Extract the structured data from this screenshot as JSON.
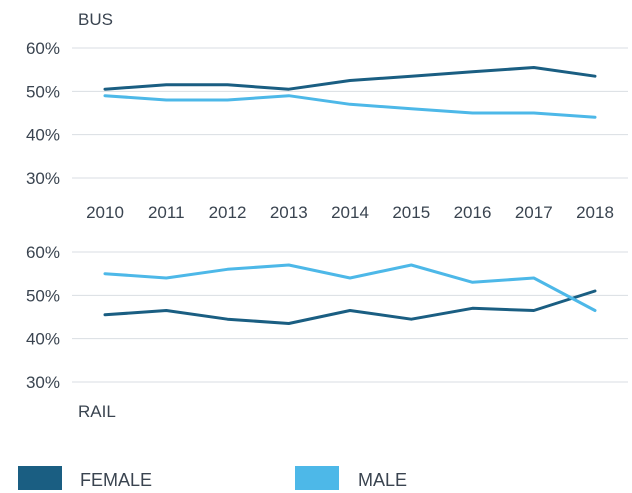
{
  "chart_data": [
    {
      "type": "line",
      "title": "BUS",
      "x": [
        "2010",
        "2011",
        "2012",
        "2013",
        "2014",
        "2015",
        "2016",
        "2017",
        "2018"
      ],
      "yticks": [
        "60%",
        "50%",
        "40%",
        "30%"
      ],
      "ylim": [
        30,
        60
      ],
      "grid": true,
      "series": [
        {
          "name": "FEMALE",
          "color": "#1a5e82",
          "values": [
            50.5,
            51.5,
            51.5,
            50.5,
            52.5,
            53.5,
            54.5,
            55.5,
            53.5
          ]
        },
        {
          "name": "MALE",
          "color": "#4db8e8",
          "values": [
            49,
            48,
            48,
            49,
            47,
            46,
            45,
            45,
            44
          ]
        }
      ]
    },
    {
      "type": "line",
      "title": "RAIL",
      "x": [
        "2010",
        "2011",
        "2012",
        "2013",
        "2014",
        "2015",
        "2016",
        "2017",
        "2018"
      ],
      "yticks": [
        "60%",
        "50%",
        "40%",
        "30%"
      ],
      "ylim": [
        30,
        60
      ],
      "grid": true,
      "series": [
        {
          "name": "FEMALE",
          "color": "#1a5e82",
          "values": [
            45.5,
            46.5,
            44.5,
            43.5,
            46.5,
            44.5,
            47,
            46.5,
            51
          ]
        },
        {
          "name": "MALE",
          "color": "#4db8e8",
          "values": [
            55,
            54,
            56,
            57,
            54,
            57,
            53,
            54,
            46.5
          ]
        }
      ]
    }
  ],
  "legend": [
    {
      "label": "FEMALE",
      "color": "#1a5e82"
    },
    {
      "label": "MALE",
      "color": "#4db8e8"
    }
  ]
}
